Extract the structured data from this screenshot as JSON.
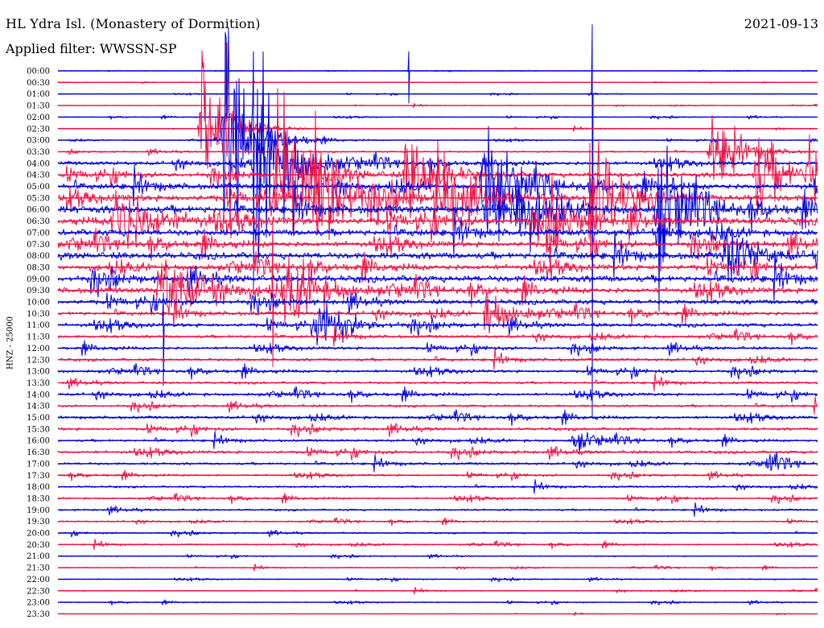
{
  "header": {
    "title": "HL Ydra Isl. (Monastery of Dormition)",
    "filter": "Applied filter: WWSSN-SP",
    "date": "2021-09-13"
  },
  "chart_data": {
    "type": "line",
    "title": "HL Ydra Isl. (Monastery of Dormition)",
    "subtitle": "Applied filter: WWSSN-SP",
    "date": "2021-09-13",
    "ylabel": "HNZ - 25000",
    "row_labels": [
      "00:00",
      "00:30",
      "01:00",
      "01:30",
      "02:00",
      "02:30",
      "03:00",
      "03:30",
      "04:00",
      "04:30",
      "05:00",
      "05:30",
      "06:00",
      "06:30",
      "07:00",
      "07:30",
      "08:00",
      "08:30",
      "09:00",
      "09:30",
      "10:00",
      "10:30",
      "11:00",
      "11:30",
      "12:00",
      "12:30",
      "13:00",
      "13:30",
      "14:00",
      "14:30",
      "15:00",
      "15:30",
      "16:00",
      "16:30",
      "17:00",
      "17:30",
      "18:00",
      "18:30",
      "19:00",
      "19:30",
      "20:00",
      "20:30",
      "21:00",
      "21:30",
      "22:00",
      "22:30",
      "23:00",
      "23:30"
    ],
    "row_noise_amplitude": [
      0.3,
      0.3,
      0.6,
      0.6,
      0.8,
      0.8,
      1.0,
      1.5,
      4,
      5,
      6,
      7,
      8,
      8,
      7,
      6,
      7,
      6,
      7,
      6,
      5,
      4,
      4,
      3,
      3,
      3,
      3,
      2.5,
      3,
      2.5,
      3,
      3,
      2.5,
      3,
      2.5,
      2,
      2,
      2,
      2,
      1.5,
      1.5,
      1.5,
      1,
      1,
      1,
      1,
      1,
      0.5
    ],
    "series_colors": [
      "#0000dd",
      "#ee1144"
    ],
    "events": [
      {
        "x": 0.19,
        "row": 5,
        "amp": 95,
        "dur": 0.03
      },
      {
        "x": 0.22,
        "row": 6,
        "amp": 160,
        "dur": 0.03
      },
      {
        "x": 0.26,
        "row": 8,
        "amp": 140,
        "dur": 0.035
      },
      {
        "x": 0.29,
        "row": 9,
        "amp": 120,
        "dur": 0.03
      },
      {
        "x": 0.34,
        "row": 11,
        "amp": 110,
        "dur": 0.035
      },
      {
        "x": 0.075,
        "row": 13,
        "amp": 60,
        "dur": 0.04
      },
      {
        "x": 0.135,
        "row": 19,
        "amp": 55,
        "dur": 0.04
      },
      {
        "x": 0.3,
        "row": 19,
        "amp": 45,
        "dur": 0.04
      },
      {
        "x": 0.345,
        "row": 22,
        "amp": 45,
        "dur": 0.03
      },
      {
        "x": 0.46,
        "row": 9,
        "amp": 75,
        "dur": 0.03
      },
      {
        "x": 0.5,
        "row": 11,
        "amp": 65,
        "dur": 0.03
      },
      {
        "x": 0.56,
        "row": 10,
        "amp": 90,
        "dur": 0.03
      },
      {
        "x": 0.6,
        "row": 12,
        "amp": 60,
        "dur": 0.03
      },
      {
        "x": 0.64,
        "row": 13,
        "amp": 50,
        "dur": 0.025
      },
      {
        "x": 0.7,
        "row": 11,
        "amp": 105,
        "dur": 0.03
      },
      {
        "x": 0.79,
        "row": 12,
        "amp": 90,
        "dur": 0.03
      },
      {
        "x": 0.86,
        "row": 7,
        "amp": 55,
        "dur": 0.03
      },
      {
        "x": 0.88,
        "row": 16,
        "amp": 45,
        "dur": 0.03
      },
      {
        "x": 0.92,
        "row": 9,
        "amp": 60,
        "dur": 0.03
      },
      {
        "x": 0.99,
        "row": 9,
        "amp": 70,
        "dur": 0.02
      },
      {
        "x": 0.565,
        "row": 21,
        "amp": 30,
        "dur": 0.03
      },
      {
        "x": 0.68,
        "row": 32,
        "amp": 14,
        "dur": 0.025
      },
      {
        "x": 0.935,
        "row": 34,
        "amp": 12,
        "dur": 0.02
      }
    ],
    "spikes": [
      {
        "x": 0.222,
        "row": 3,
        "up": 78,
        "down": 20
      },
      {
        "x": 0.257,
        "row": 6,
        "up": 110,
        "down": 185
      },
      {
        "x": 0.462,
        "row": 0,
        "up": 24,
        "down": 40
      },
      {
        "x": 0.703,
        "row": 2,
        "up": 86,
        "down": 400
      },
      {
        "x": 0.139,
        "row": 22,
        "up": 40,
        "down": 75
      },
      {
        "x": 0.283,
        "row": 19,
        "up": 90,
        "down": 95
      }
    ]
  }
}
